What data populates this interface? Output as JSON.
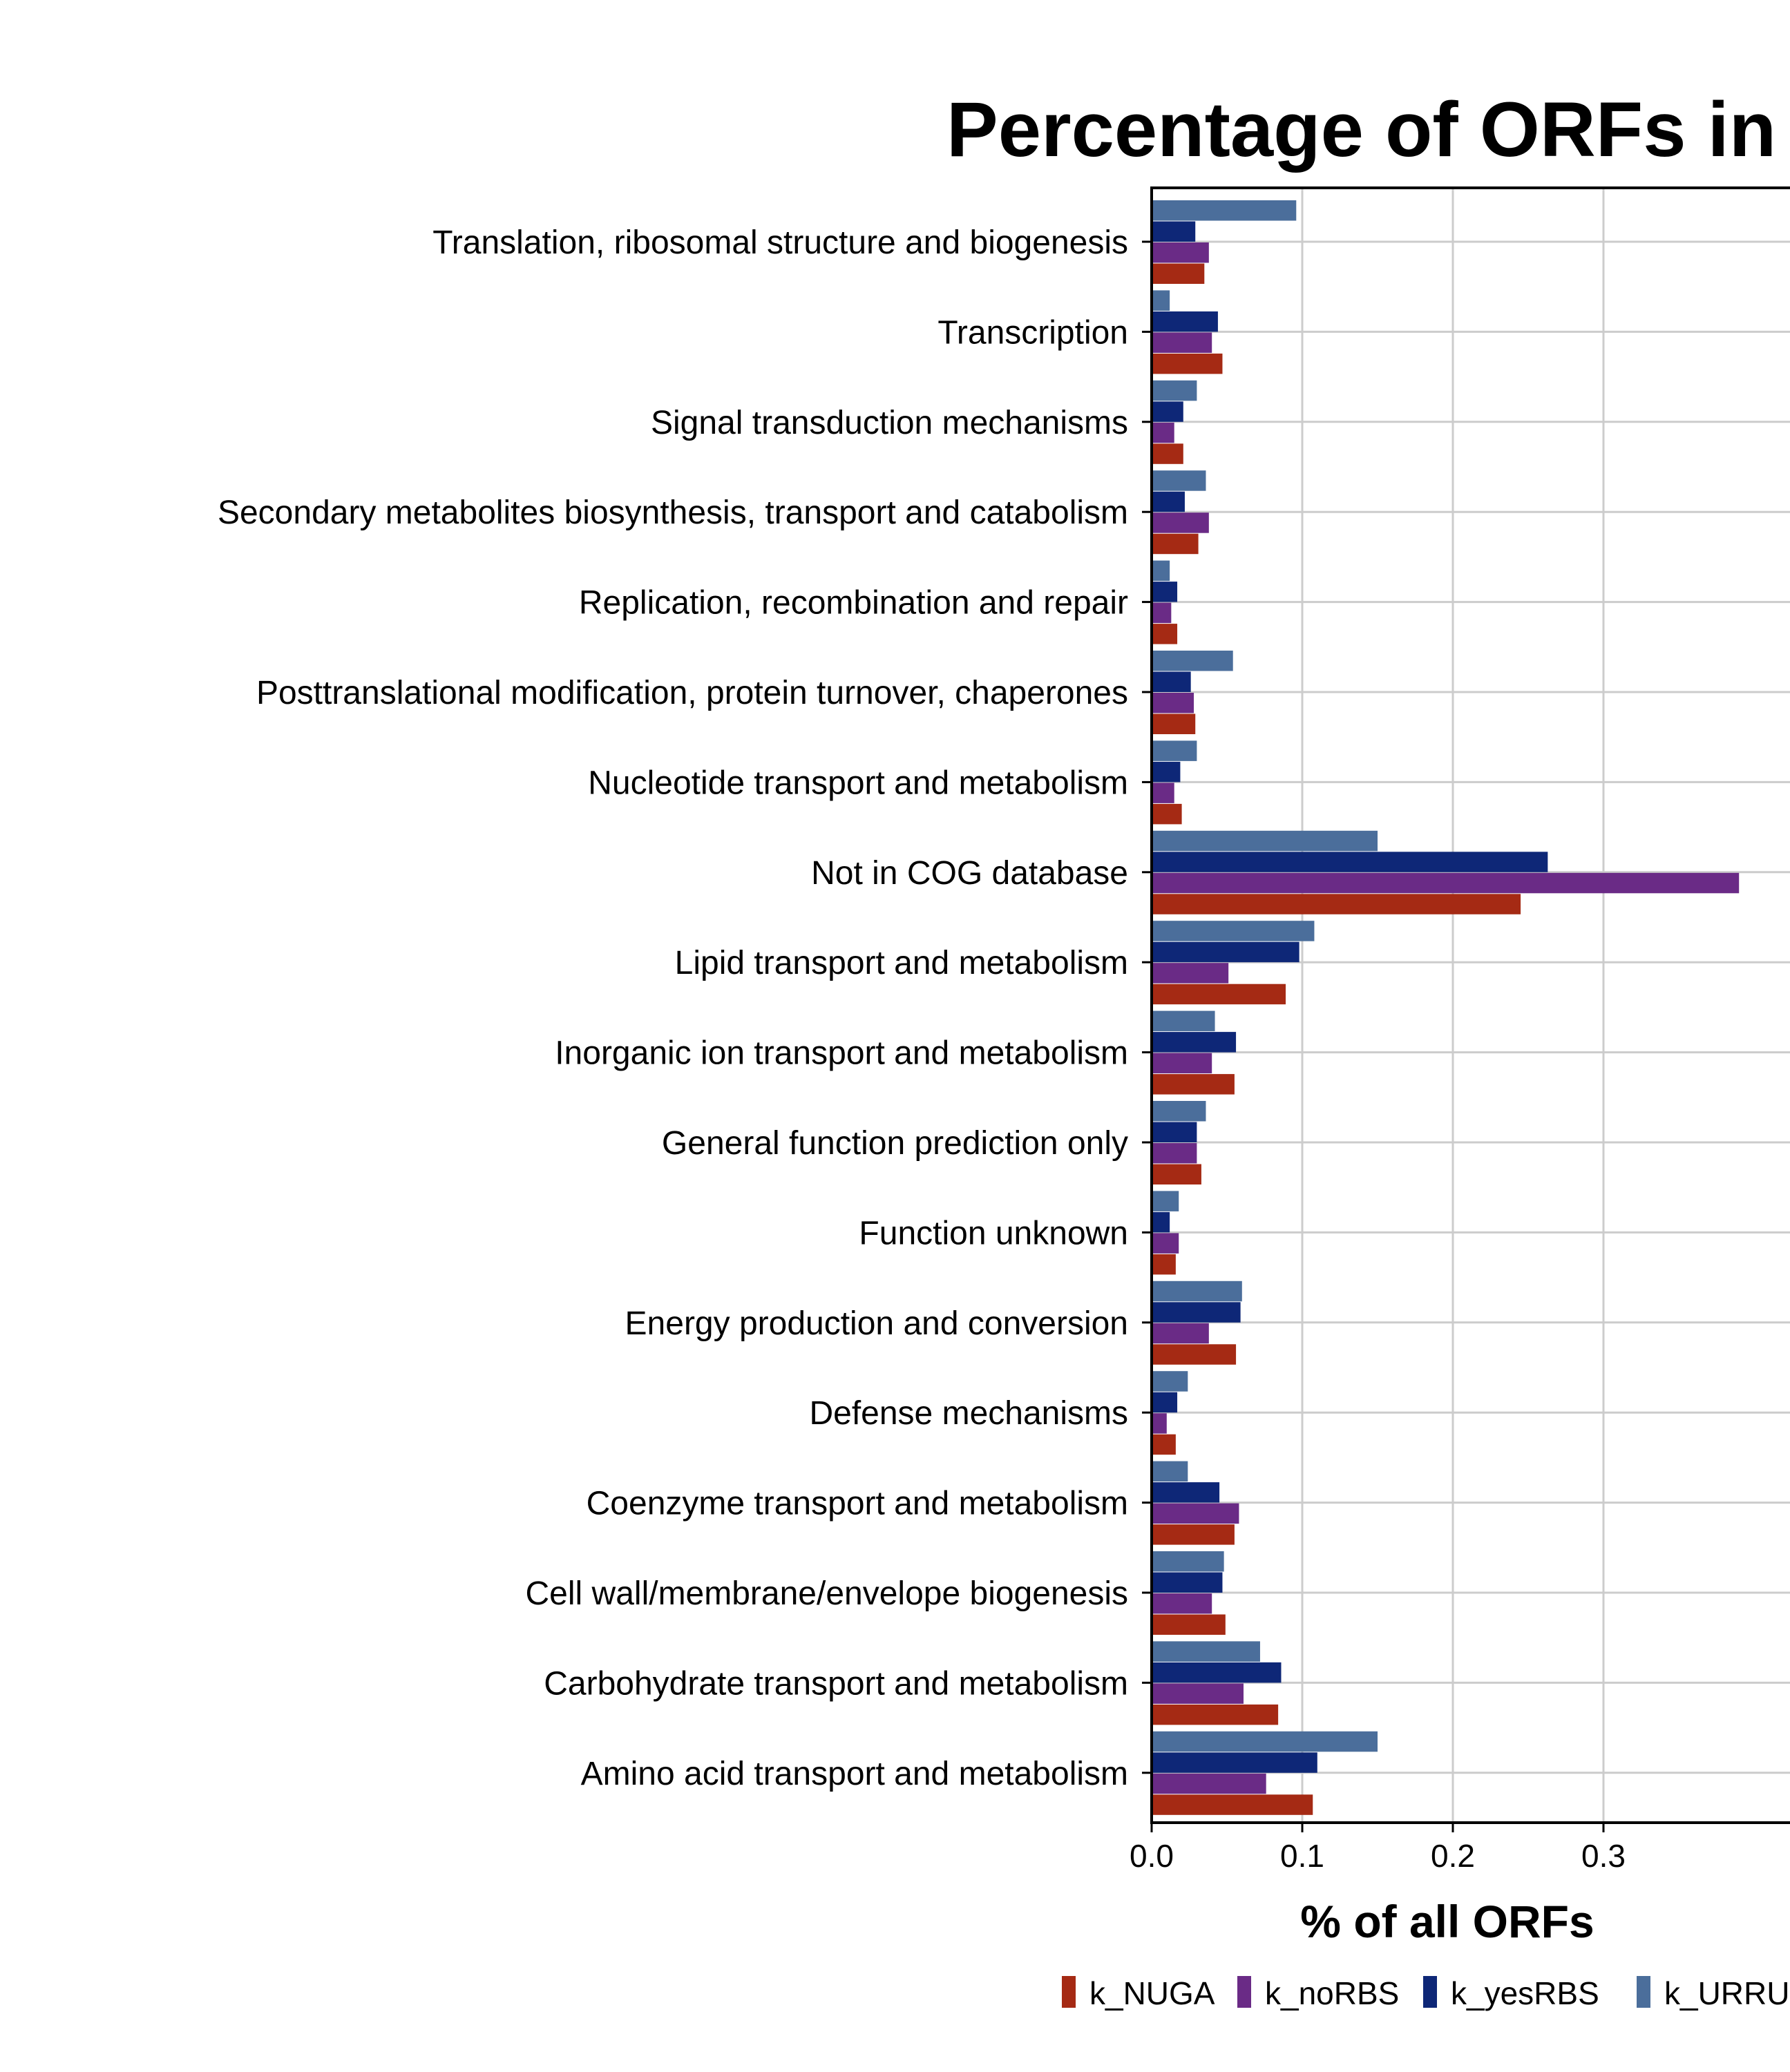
{
  "chart_data": {
    "type": "bar",
    "orientation": "horizontal",
    "title": "Percentage of ORFs in",
    "xlabel": "% of all ORFs",
    "ylabel": "",
    "xlim": [
      0,
      0.39
    ],
    "x_ticks": [
      "0.0",
      "0.1",
      "0.2",
      "0.3"
    ],
    "grid": true,
    "legend_position": "bottom",
    "categories": [
      "Translation, ribosomal structure and biogenesis",
      "Transcription",
      "Signal transduction mechanisms",
      "Secondary metabolites biosynthesis, transport and catabolism",
      "Replication, recombination and repair",
      "Posttranslational modification, protein turnover, chaperones",
      "Nucleotide transport and metabolism",
      "Not in COG database",
      "Lipid transport and metabolism",
      "Inorganic ion transport and metabolism",
      "General function prediction only",
      "Function unknown",
      "Energy production and conversion",
      "Defense mechanisms",
      "Coenzyme transport and metabolism",
      "Cell wall/membrane/envelope biogenesis",
      "Carbohydrate transport and metabolism",
      "Amino acid transport and metabolism"
    ],
    "series": [
      {
        "name": "k_NUGA",
        "color": "#a52a14",
        "values": [
          0.035,
          0.047,
          0.021,
          0.031,
          0.017,
          0.029,
          0.02,
          0.245,
          0.089,
          0.055,
          0.033,
          0.016,
          0.056,
          0.016,
          0.055,
          0.049,
          0.084,
          0.107
        ]
      },
      {
        "name": "k_noRBS",
        "color": "#6a2b86",
        "values": [
          0.038,
          0.04,
          0.015,
          0.038,
          0.013,
          0.028,
          0.015,
          0.395,
          0.051,
          0.04,
          0.03,
          0.018,
          0.038,
          0.01,
          0.058,
          0.04,
          0.061,
          0.076
        ]
      },
      {
        "name": "k_yesRBS",
        "color": "#0e2777",
        "values": [
          0.029,
          0.044,
          0.021,
          0.022,
          0.017,
          0.026,
          0.019,
          0.263,
          0.098,
          0.056,
          0.03,
          0.012,
          0.059,
          0.017,
          0.045,
          0.047,
          0.086,
          0.11
        ]
      },
      {
        "name": "k_URRU",
        "color": "#4b6e9b",
        "values": [
          0.096,
          0.012,
          0.03,
          0.036,
          0.012,
          0.054,
          0.03,
          0.15,
          0.108,
          0.042,
          0.036,
          0.018,
          0.06,
          0.024,
          0.024,
          0.048,
          0.072,
          0.15
        ]
      }
    ]
  }
}
